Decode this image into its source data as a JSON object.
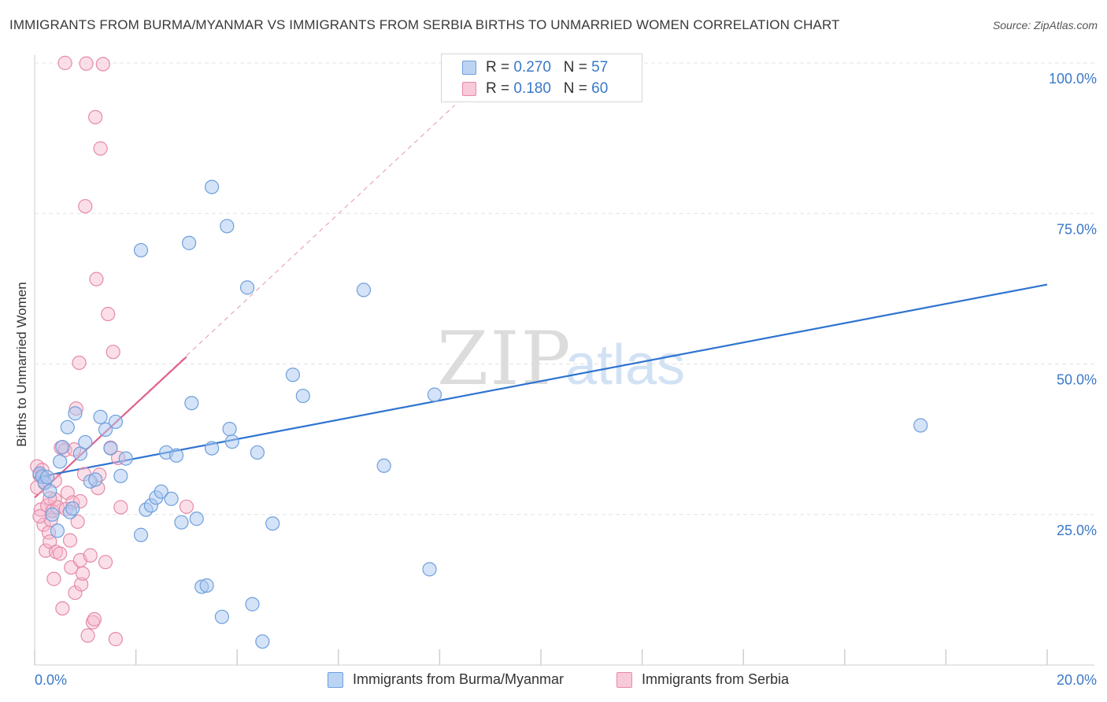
{
  "title": "IMMIGRANTS FROM BURMA/MYANMAR VS IMMIGRANTS FROM SERBIA BIRTHS TO UNMARRIED WOMEN CORRELATION CHART",
  "source": "Source: ZipAtlas.com",
  "watermark": {
    "zip": "ZIP",
    "atlas": "atlas"
  },
  "legend": {
    "rows": [
      {
        "r_label": "R = ",
        "r_value": "0.270",
        "n_label": "N = ",
        "n_value": "57"
      },
      {
        "r_label": "R = ",
        "r_value": "0.180",
        "n_label": "N = ",
        "n_value": "60"
      }
    ]
  },
  "colors": {
    "burma_fill": "#a9c8f0",
    "burma_stroke": "#6f9fdc",
    "burma_line": "#2f74d0",
    "serbia_fill": "#f6b8cb",
    "serbia_stroke": "#e58aa8",
    "serbia_line": "#e0638f",
    "grid": "#e3e3e3",
    "axis_text": "#3a78c9"
  },
  "chart_data": {
    "type": "scatter",
    "title": "IMMIGRANTS FROM BURMA/MYANMAR VS IMMIGRANTS FROM SERBIA BIRTHS TO UNMARRIED WOMEN CORRELATION CHART",
    "xlabel": "",
    "ylabel": "Births to Unmarried Women",
    "xlim": [
      0,
      20
    ],
    "ylim": [
      0,
      100
    ],
    "x_tick_labels": [
      "0.0%",
      "20.0%"
    ],
    "y_tick_values": [
      25,
      50,
      75,
      100
    ],
    "y_tick_labels": [
      "25.0%",
      "50.0%",
      "75.0%",
      "100.0%"
    ],
    "grid": true,
    "legend_placement": "bottom",
    "series": [
      {
        "name": "Immigrants from Burma/Myanmar",
        "r": 0.27,
        "n": 57,
        "trend": [
          [
            0,
            31.1
          ],
          [
            20,
            63.2
          ]
        ],
        "points": [
          [
            0.1,
            31.8
          ],
          [
            0.15,
            31.3
          ],
          [
            0.2,
            30.3
          ],
          [
            0.3,
            28.9
          ],
          [
            0.35,
            25.0
          ],
          [
            0.45,
            22.3
          ],
          [
            0.5,
            33.8
          ],
          [
            0.55,
            36.2
          ],
          [
            0.65,
            39.5
          ],
          [
            0.7,
            25.4
          ],
          [
            0.75,
            26.0
          ],
          [
            0.8,
            41.8
          ],
          [
            0.9,
            35.1
          ],
          [
            1.0,
            37.0
          ],
          [
            1.1,
            30.5
          ],
          [
            1.2,
            30.8
          ],
          [
            1.3,
            41.2
          ],
          [
            1.4,
            39.1
          ],
          [
            1.5,
            36.0
          ],
          [
            1.6,
            40.4
          ],
          [
            1.7,
            31.4
          ],
          [
            1.8,
            34.3
          ],
          [
            2.1,
            68.9
          ],
          [
            2.1,
            21.6
          ],
          [
            2.2,
            25.8
          ],
          [
            2.3,
            26.5
          ],
          [
            2.4,
            27.8
          ],
          [
            2.5,
            28.8
          ],
          [
            2.6,
            35.3
          ],
          [
            2.7,
            27.6
          ],
          [
            2.8,
            34.8
          ],
          [
            2.9,
            23.7
          ],
          [
            3.05,
            70.1
          ],
          [
            3.1,
            43.5
          ],
          [
            3.2,
            24.3
          ],
          [
            3.3,
            13.0
          ],
          [
            3.4,
            13.2
          ],
          [
            3.5,
            36.0
          ],
          [
            3.5,
            79.4
          ],
          [
            3.7,
            8.0
          ],
          [
            3.8,
            72.9
          ],
          [
            3.85,
            39.2
          ],
          [
            3.9,
            37.1
          ],
          [
            4.2,
            62.7
          ],
          [
            4.3,
            10.1
          ],
          [
            4.4,
            35.3
          ],
          [
            4.5,
            3.9
          ],
          [
            4.7,
            23.5
          ],
          [
            5.1,
            48.2
          ],
          [
            5.3,
            44.7
          ],
          [
            6.5,
            62.3
          ],
          [
            6.9,
            33.1
          ],
          [
            7.8,
            15.9
          ],
          [
            7.9,
            44.9
          ],
          [
            11.2,
            100.0
          ],
          [
            17.5,
            39.8
          ],
          [
            0.25,
            31.2
          ]
        ]
      },
      {
        "name": "Immigrants from Serbia",
        "r": 0.18,
        "n": 60,
        "trend": [
          [
            0,
            27.8
          ],
          [
            3.0,
            51.2
          ]
        ],
        "trend_extended": [
          [
            0,
            27.8
          ],
          [
            8.3,
            93.0
          ]
        ],
        "points": [
          [
            0.05,
            33.0
          ],
          [
            0.05,
            29.5
          ],
          [
            0.1,
            31.5
          ],
          [
            0.12,
            25.8
          ],
          [
            0.15,
            32.4
          ],
          [
            0.18,
            23.3
          ],
          [
            0.2,
            30.2
          ],
          [
            0.22,
            19.0
          ],
          [
            0.25,
            26.5
          ],
          [
            0.28,
            22.0
          ],
          [
            0.3,
            20.5
          ],
          [
            0.32,
            24.1
          ],
          [
            0.35,
            25.6
          ],
          [
            0.38,
            14.3
          ],
          [
            0.4,
            27.5
          ],
          [
            0.42,
            18.8
          ],
          [
            0.45,
            26.2
          ],
          [
            0.5,
            18.5
          ],
          [
            0.52,
            36.1
          ],
          [
            0.55,
            9.4
          ],
          [
            0.6,
            35.7
          ],
          [
            0.62,
            25.9
          ],
          [
            0.65,
            28.6
          ],
          [
            0.7,
            20.7
          ],
          [
            0.72,
            16.2
          ],
          [
            0.75,
            27.0
          ],
          [
            0.78,
            35.8
          ],
          [
            0.8,
            12.0
          ],
          [
            0.82,
            42.6
          ],
          [
            0.85,
            23.8
          ],
          [
            0.88,
            50.2
          ],
          [
            0.9,
            17.4
          ],
          [
            0.92,
            13.4
          ],
          [
            0.95,
            15.2
          ],
          [
            0.98,
            31.7
          ],
          [
            1.0,
            76.2
          ],
          [
            1.02,
            99.9
          ],
          [
            1.05,
            4.9
          ],
          [
            1.1,
            18.2
          ],
          [
            1.15,
            7.1
          ],
          [
            1.18,
            7.6
          ],
          [
            1.2,
            91.0
          ],
          [
            1.22,
            64.1
          ],
          [
            1.25,
            29.4
          ],
          [
            1.28,
            31.6
          ],
          [
            1.3,
            85.8
          ],
          [
            1.35,
            99.8
          ],
          [
            1.4,
            17.1
          ],
          [
            1.45,
            58.3
          ],
          [
            1.5,
            36.1
          ],
          [
            1.55,
            52.0
          ],
          [
            1.6,
            4.3
          ],
          [
            1.65,
            34.4
          ],
          [
            1.7,
            26.2
          ],
          [
            0.6,
            100.0
          ],
          [
            0.9,
            27.2
          ],
          [
            0.1,
            24.7
          ],
          [
            0.3,
            27.7
          ],
          [
            3.0,
            26.3
          ],
          [
            0.4,
            30.6
          ]
        ]
      }
    ]
  },
  "bottom_legend": [
    "Immigrants from Burma/Myanmar",
    "Immigrants from Serbia"
  ]
}
